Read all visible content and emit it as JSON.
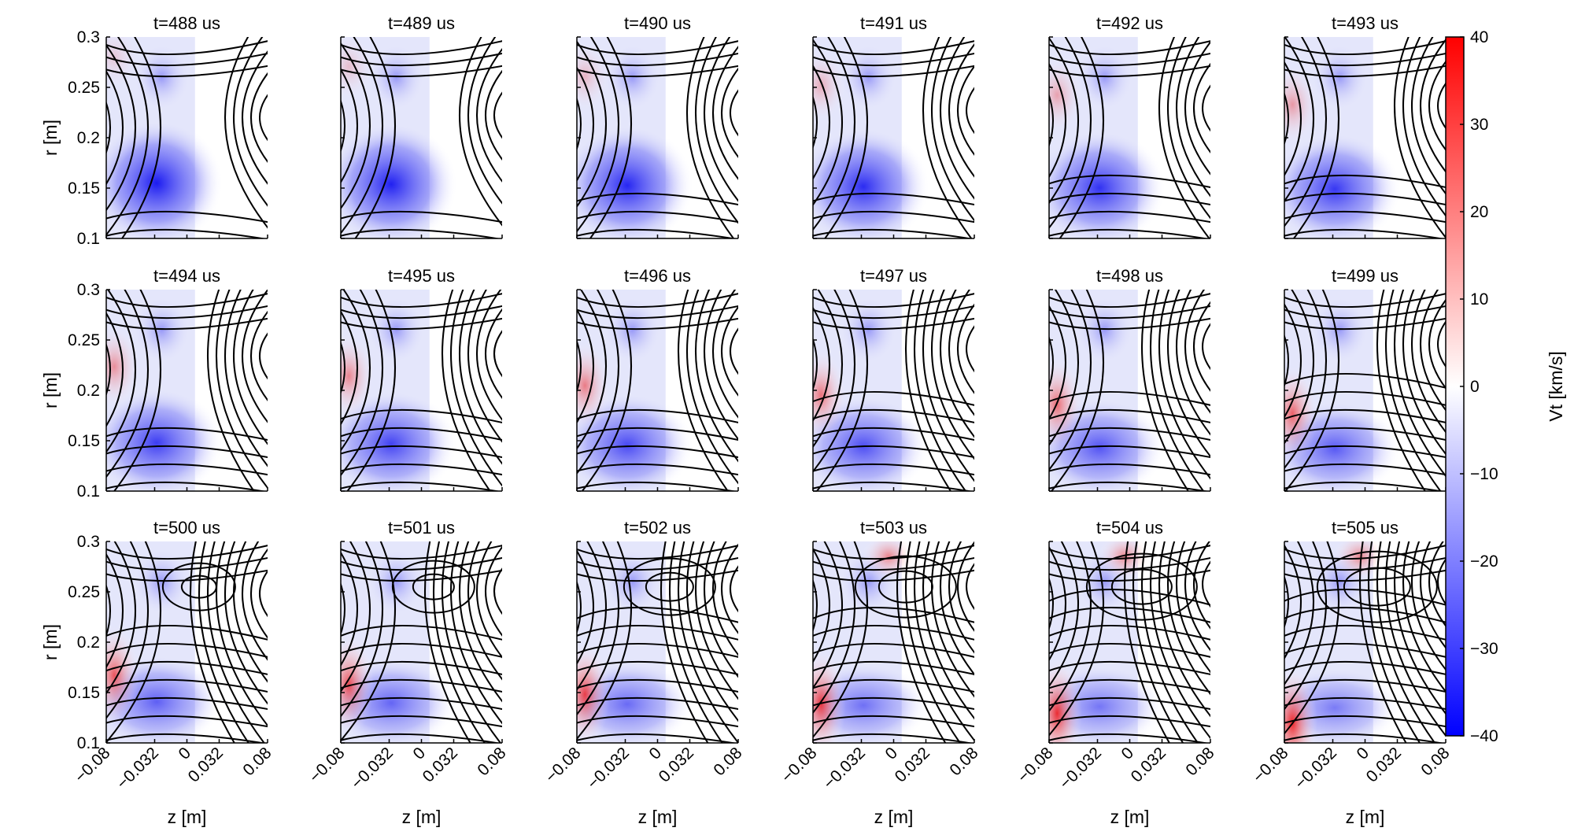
{
  "chart_data": {
    "type": "heatmap",
    "layout": {
      "rows": 3,
      "cols": 6
    },
    "panel_titles": [
      "t=488 us",
      "t=489 us",
      "t=490 us",
      "t=491 us",
      "t=492 us",
      "t=493 us",
      "t=494 us",
      "t=495 us",
      "t=496 us",
      "t=497 us",
      "t=498 us",
      "t=499 us",
      "t=500 us",
      "t=501 us",
      "t=502 us",
      "t=503 us",
      "t=504 us",
      "t=505 us"
    ],
    "xlabel": "z [m]",
    "ylabel": "r [m]",
    "xlim": [
      -0.08,
      0.08
    ],
    "ylim": [
      0.1,
      0.3
    ],
    "data_region_z": [
      -0.08,
      0.008
    ],
    "xticks": [
      -0.08,
      -0.032,
      0,
      0.032,
      0.08
    ],
    "xtick_labels": [
      "−0.08",
      "−0.032",
      "0",
      "0.032",
      "0.08"
    ],
    "yticks": [
      0.3,
      0.25,
      0.2,
      0.15,
      0.1
    ],
    "ytick_labels": [
      "0.3",
      "0.25",
      "0.2",
      "0.15",
      "0.1"
    ],
    "colorbar": {
      "label": "Vt [km/s]",
      "min": -40,
      "max": 40,
      "ticks": [
        40,
        30,
        20,
        10,
        0,
        -10,
        -20,
        -30,
        -40
      ],
      "tick_labels": [
        "40",
        "30",
        "20",
        "10",
        "0",
        "−10",
        "−20",
        "−30",
        "−40"
      ],
      "colormap": [
        "#0000ff",
        "#ffffff",
        "#ff0000"
      ]
    },
    "contours_color": "#000000",
    "grid": false
  }
}
